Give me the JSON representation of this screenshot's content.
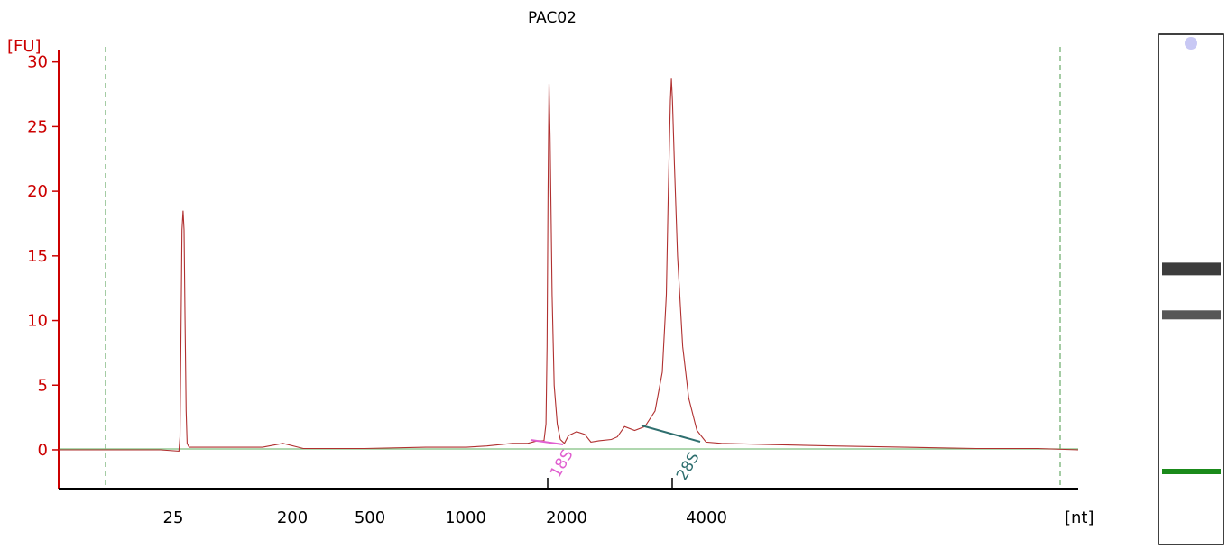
{
  "chart_data": {
    "type": "line",
    "title": "PAC02",
    "ylabel": "[FU]",
    "xlabel": "[nt]",
    "ylim": [
      -3,
      32
    ],
    "y_ticks": [
      0,
      5,
      10,
      15,
      20,
      25,
      30
    ],
    "x_ticks": [
      "25",
      "200",
      "500",
      "1000",
      "2000",
      "4000"
    ],
    "axis_colors": {
      "y_axis": "#cc0000",
      "x_axis": "#000000",
      "trace": "#b03030",
      "baseline": "#7fbf7f",
      "markers": "#4a9a4a"
    },
    "series": [
      {
        "values": [
          [
            0,
            0
          ],
          [
            40,
            0
          ],
          [
            80,
            0
          ],
          [
            100,
            0
          ],
          [
            118,
            -0.1
          ],
          [
            119,
            1
          ],
          [
            120,
            9
          ],
          [
            121,
            17
          ],
          [
            122,
            18.5
          ],
          [
            123,
            17
          ],
          [
            124,
            10
          ],
          [
            125,
            3
          ],
          [
            126,
            0.5
          ],
          [
            128,
            0.2
          ],
          [
            200,
            0.2
          ],
          [
            220,
            0.5
          ],
          [
            240,
            0.1
          ],
          [
            300,
            0.1
          ],
          [
            360,
            0.2
          ],
          [
            400,
            0.2
          ],
          [
            420,
            0.3
          ],
          [
            445,
            0.5
          ],
          [
            460,
            0.5
          ],
          [
            470,
            0.7
          ],
          [
            476,
            0.7
          ],
          [
            478,
            2
          ],
          [
            479,
            8
          ],
          [
            480,
            20
          ],
          [
            481,
            28.3
          ],
          [
            482,
            24
          ],
          [
            484,
            12
          ],
          [
            486,
            5
          ],
          [
            489,
            2
          ],
          [
            492,
            0.8
          ],
          [
            496,
            0.5
          ],
          [
            500,
            1.1
          ],
          [
            508,
            1.4
          ],
          [
            516,
            1.2
          ],
          [
            522,
            0.6
          ],
          [
            530,
            0.7
          ],
          [
            542,
            0.8
          ],
          [
            548,
            1.0
          ],
          [
            555,
            1.8
          ],
          [
            565,
            1.5
          ],
          [
            575,
            1.8
          ],
          [
            585,
            3
          ],
          [
            592,
            6
          ],
          [
            596,
            12
          ],
          [
            598,
            20
          ],
          [
            600,
            27
          ],
          [
            601,
            28.7
          ],
          [
            602,
            27
          ],
          [
            604,
            22
          ],
          [
            607,
            15
          ],
          [
            612,
            8
          ],
          [
            618,
            4
          ],
          [
            626,
            1.5
          ],
          [
            635,
            0.6
          ],
          [
            650,
            0.5
          ],
          [
            700,
            0.4
          ],
          [
            760,
            0.3
          ],
          [
            830,
            0.2
          ],
          [
            900,
            0.1
          ],
          [
            960,
            0.1
          ],
          [
            1000,
            0
          ]
        ]
      }
    ],
    "annotations": [
      {
        "label": "18S",
        "color": "#e060d0"
      },
      {
        "label": "28S",
        "color": "#2f6f6f"
      }
    ],
    "gel_lane": {
      "bands": [
        0.08,
        0.46,
        0.55
      ],
      "marker_color": "#1a8a1a"
    }
  }
}
